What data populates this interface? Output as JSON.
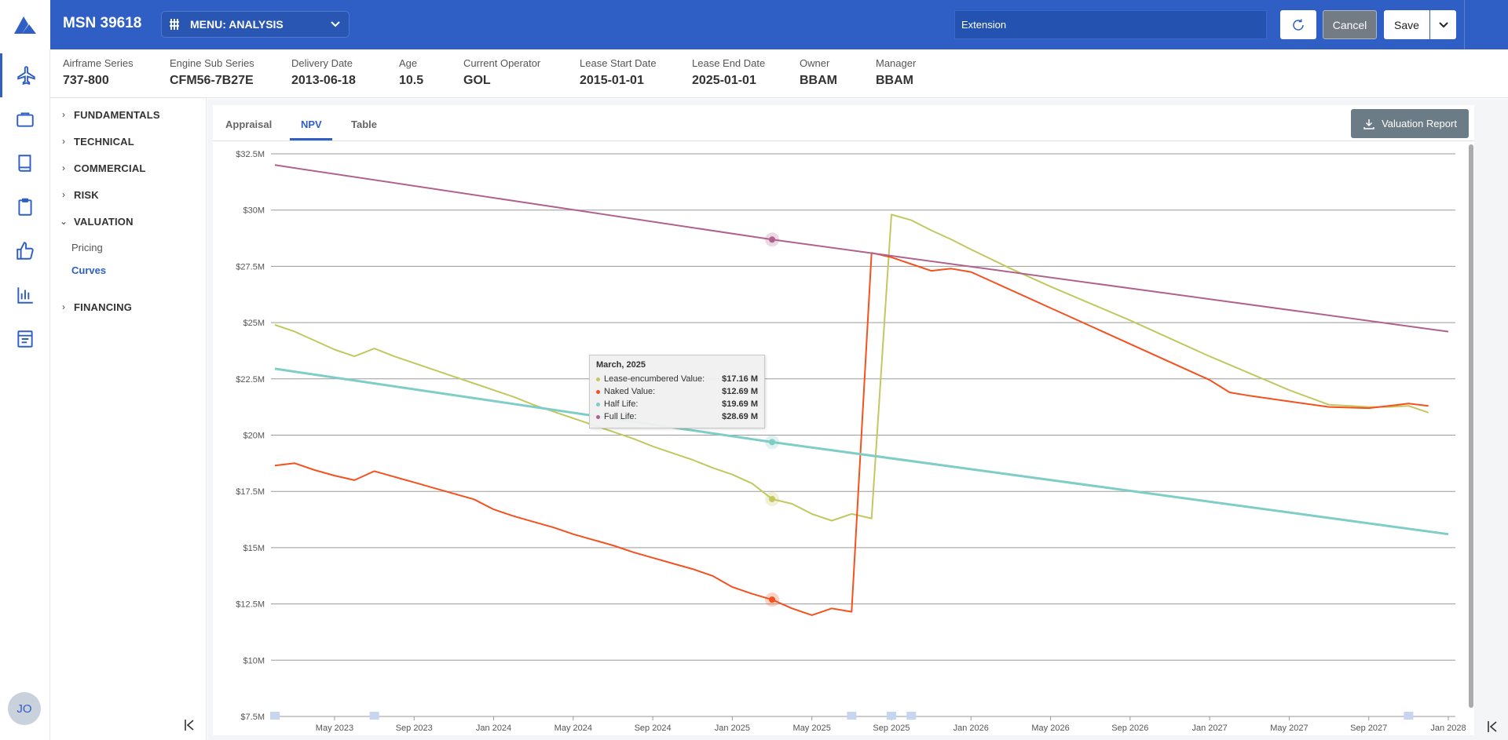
{
  "header": {
    "msn": "MSN 39618",
    "menu_label": "MENU: ANALYSIS",
    "scenario_value": "Extension",
    "cancel_label": "Cancel",
    "save_label": "Save"
  },
  "info_fields": [
    {
      "label": "Airframe Series",
      "value": "737-800"
    },
    {
      "label": "Engine Sub Series",
      "value": "CFM56-7B27E"
    },
    {
      "label": "Delivery Date",
      "value": "2013-06-18"
    },
    {
      "label": "Age",
      "value": "10.5"
    },
    {
      "label": "Current Operator",
      "value": "GOL"
    },
    {
      "label": "Lease Start Date",
      "value": "2015-01-01"
    },
    {
      "label": "Lease End Date",
      "value": "2025-01-01"
    },
    {
      "label": "Owner",
      "value": "BBAM"
    },
    {
      "label": "Manager",
      "value": "BBAM"
    }
  ],
  "tree": {
    "sections": [
      {
        "label": "FUNDAMENTALS",
        "expanded": false
      },
      {
        "label": "TECHNICAL",
        "expanded": false
      },
      {
        "label": "COMMERCIAL",
        "expanded": false
      },
      {
        "label": "RISK",
        "expanded": false
      },
      {
        "label": "VALUATION",
        "expanded": true
      },
      {
        "label": "FINANCING",
        "expanded": false
      }
    ],
    "valuation_items": [
      "Pricing",
      "Curves"
    ],
    "active_item": "Curves"
  },
  "tabs": [
    "Appraisal",
    "NPV",
    "Table"
  ],
  "active_tab": "NPV",
  "report_button": "Valuation Report",
  "user": {
    "initials": "JO"
  },
  "rail_icons": [
    "airplane-icon",
    "briefcase-icon",
    "book-icon",
    "clipboard-icon",
    "thumbs-up-icon",
    "bar-chart-icon",
    "document-icon"
  ],
  "colors": {
    "brand": "#2f5fc4",
    "lease": "#c2c85f",
    "naked": "#f4511e",
    "half": "#7fcdc7",
    "full": "#b0628e"
  },
  "tooltip": {
    "title": "March, 2025",
    "rows": [
      {
        "label": "Lease-encumbered Value:",
        "value": "$17.16 M",
        "color": "#c2c85f"
      },
      {
        "label": "Naked Value:",
        "value": "$12.69 M",
        "color": "#f4511e"
      },
      {
        "label": "Half Life:",
        "value": "$19.69 M",
        "color": "#7fcdc7"
      },
      {
        "label": "Full Life:",
        "value": "$28.69 M",
        "color": "#b0628e"
      }
    ]
  },
  "chart_data": {
    "type": "line",
    "title": "",
    "xlabel": "",
    "ylabel": "",
    "ylim": [
      7.5,
      32.5
    ],
    "y_ticks": [
      "$7.5M",
      "$10M",
      "$12.5M",
      "$15M",
      "$17.5M",
      "$20M",
      "$22.5M",
      "$25M",
      "$27.5M",
      "$30M",
      "$32.5M"
    ],
    "y_tick_values": [
      7.5,
      10,
      12.5,
      15,
      17.5,
      20,
      22.5,
      25,
      27.5,
      30,
      32.5
    ],
    "x_range": [
      "2023-02",
      "2028-01"
    ],
    "x_ticks": [
      "May 2023",
      "Sep 2023",
      "Jan 2024",
      "May 2024",
      "Sep 2024",
      "Jan 2025",
      "May 2025",
      "Sep 2025",
      "Jan 2026",
      "May 2026",
      "Sep 2026",
      "Jan 2027",
      "May 2027",
      "Sep 2027",
      "Jan 2028"
    ],
    "x_tick_dates": [
      "2023-05",
      "2023-09",
      "2024-01",
      "2024-05",
      "2024-09",
      "2025-01",
      "2025-05",
      "2025-09",
      "2026-01",
      "2026-05",
      "2026-09",
      "2027-01",
      "2027-05",
      "2027-09",
      "2028-01"
    ],
    "event_marker_dates": [
      "2023-02",
      "2023-07",
      "2025-07",
      "2025-09",
      "2025-10",
      "2027-11"
    ],
    "highlight_date": "2025-03",
    "grid": true,
    "series": [
      {
        "key": "lease",
        "values": [
          [
            "2023-02",
            24.9
          ],
          [
            "2023-03",
            24.6
          ],
          [
            "2023-04",
            24.2
          ],
          [
            "2023-05",
            23.8
          ],
          [
            "2023-06",
            23.5
          ],
          [
            "2023-07",
            23.85
          ],
          [
            "2023-08",
            23.5
          ],
          [
            "2023-09",
            23.2
          ],
          [
            "2023-10",
            22.9
          ],
          [
            "2023-11",
            22.6
          ],
          [
            "2023-12",
            22.3
          ],
          [
            "2024-01",
            22.0
          ],
          [
            "2024-02",
            21.7
          ],
          [
            "2024-03",
            21.35
          ],
          [
            "2024-04",
            21.05
          ],
          [
            "2024-05",
            20.75
          ],
          [
            "2024-06",
            20.45
          ],
          [
            "2024-07",
            20.15
          ],
          [
            "2024-08",
            19.85
          ],
          [
            "2024-09",
            19.5
          ],
          [
            "2024-10",
            19.2
          ],
          [
            "2024-11",
            18.9
          ],
          [
            "2024-12",
            18.55
          ],
          [
            "2025-01",
            18.25
          ],
          [
            "2025-02",
            17.85
          ],
          [
            "2025-03",
            17.16
          ],
          [
            "2025-04",
            16.95
          ],
          [
            "2025-05",
            16.5
          ],
          [
            "2025-06",
            16.2
          ],
          [
            "2025-07",
            16.5
          ],
          [
            "2025-08",
            16.3
          ],
          [
            "2025-09",
            29.8
          ],
          [
            "2025-10",
            29.55
          ],
          [
            "2025-11",
            29.1
          ],
          [
            "2025-12",
            28.7
          ],
          [
            "2026-01",
            28.25
          ],
          [
            "2026-03",
            27.4
          ],
          [
            "2026-05",
            26.6
          ],
          [
            "2026-07",
            25.85
          ],
          [
            "2026-09",
            25.1
          ],
          [
            "2026-11",
            24.3
          ],
          [
            "2027-01",
            23.5
          ],
          [
            "2027-03",
            22.75
          ],
          [
            "2027-05",
            22.0
          ],
          [
            "2027-07",
            21.35
          ],
          [
            "2027-09",
            21.25
          ],
          [
            "2027-10",
            21.25
          ],
          [
            "2027-11",
            21.3
          ],
          [
            "2027-12",
            21.0
          ]
        ]
      },
      {
        "key": "naked",
        "values": [
          [
            "2023-02",
            18.65
          ],
          [
            "2023-03",
            18.75
          ],
          [
            "2023-04",
            18.45
          ],
          [
            "2023-05",
            18.2
          ],
          [
            "2023-06",
            18.0
          ],
          [
            "2023-07",
            18.4
          ],
          [
            "2023-08",
            18.15
          ],
          [
            "2023-09",
            17.9
          ],
          [
            "2023-10",
            17.65
          ],
          [
            "2023-11",
            17.4
          ],
          [
            "2023-12",
            17.15
          ],
          [
            "2024-01",
            16.7
          ],
          [
            "2024-02",
            16.4
          ],
          [
            "2024-03",
            16.15
          ],
          [
            "2024-04",
            15.9
          ],
          [
            "2024-05",
            15.6
          ],
          [
            "2024-06",
            15.35
          ],
          [
            "2024-07",
            15.1
          ],
          [
            "2024-08",
            14.8
          ],
          [
            "2024-09",
            14.55
          ],
          [
            "2024-10",
            14.3
          ],
          [
            "2024-11",
            14.05
          ],
          [
            "2024-12",
            13.75
          ],
          [
            "2025-01",
            13.25
          ],
          [
            "2025-02",
            12.95
          ],
          [
            "2025-03",
            12.69
          ],
          [
            "2025-04",
            12.3
          ],
          [
            "2025-05",
            12.0
          ],
          [
            "2025-06",
            12.3
          ],
          [
            "2025-07",
            12.15
          ],
          [
            "2025-08",
            28.1
          ],
          [
            "2025-09",
            27.9
          ],
          [
            "2025-10",
            27.6
          ],
          [
            "2025-11",
            27.3
          ],
          [
            "2025-12",
            27.4
          ],
          [
            "2026-01",
            27.25
          ],
          [
            "2026-03",
            26.45
          ],
          [
            "2026-05",
            25.65
          ],
          [
            "2026-07",
            24.85
          ],
          [
            "2026-09",
            24.05
          ],
          [
            "2026-11",
            23.25
          ],
          [
            "2027-01",
            22.45
          ],
          [
            "2027-02",
            21.9
          ],
          [
            "2027-03",
            21.75
          ],
          [
            "2027-05",
            21.5
          ],
          [
            "2027-07",
            21.25
          ],
          [
            "2027-09",
            21.2
          ],
          [
            "2027-10",
            21.3
          ],
          [
            "2027-11",
            21.4
          ],
          [
            "2027-12",
            21.3
          ]
        ]
      },
      {
        "key": "half",
        "values": [
          [
            "2023-02",
            22.95
          ],
          [
            "2025-03",
            19.69
          ],
          [
            "2028-01",
            15.6
          ]
        ]
      },
      {
        "key": "full",
        "values": [
          [
            "2023-02",
            32.0
          ],
          [
            "2025-03",
            28.69
          ],
          [
            "2028-01",
            24.6
          ]
        ]
      }
    ]
  }
}
